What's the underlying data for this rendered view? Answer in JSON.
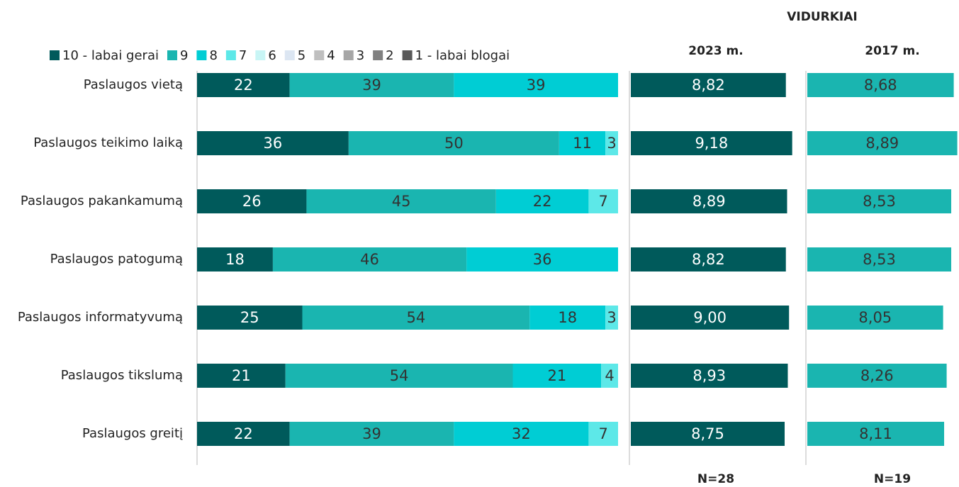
{
  "heading": "VIDURKIAI",
  "chart_data": [
    {
      "type": "stacked-bar",
      "orientation": "horizontal",
      "categories": [
        "Paslaugos vietą",
        "Paslaugos teikimo laiką",
        "Paslaugos pakankamumą",
        "Paslaugos patogumą",
        "Paslaugos informatyvumą",
        "Paslaugos tikslumą",
        "Paslaugos greitį"
      ],
      "xlim": [
        0,
        100
      ],
      "series": [
        {
          "name": "10 - labai gerai",
          "color": "#005a5b",
          "values": [
            22,
            36,
            26,
            18,
            25,
            21,
            22
          ]
        },
        {
          "name": "9",
          "color": "#1ab5b0",
          "values": [
            39,
            50,
            45,
            46,
            54,
            54,
            39
          ]
        },
        {
          "name": "8",
          "color": "#00cdd4",
          "values": [
            39,
            11,
            22,
            36,
            18,
            21,
            32
          ]
        },
        {
          "name": "7",
          "color": "#5de8e8",
          "values": [
            null,
            3,
            7,
            null,
            3,
            4,
            7
          ]
        },
        {
          "name": "6",
          "color": "#c8f5f5",
          "values": [
            null,
            null,
            null,
            null,
            null,
            null,
            null
          ]
        },
        {
          "name": "5",
          "color": "#dce6f2",
          "values": [
            null,
            null,
            null,
            null,
            null,
            null,
            null
          ]
        },
        {
          "name": "4",
          "color": "#bfbfbf",
          "values": [
            null,
            null,
            null,
            null,
            null,
            null,
            null
          ]
        },
        {
          "name": "3",
          "color": "#a6a6a6",
          "values": [
            null,
            null,
            null,
            null,
            null,
            null,
            null
          ]
        },
        {
          "name": "2",
          "color": "#808080",
          "values": [
            null,
            null,
            null,
            null,
            null,
            null,
            null
          ]
        },
        {
          "name": "1 - labai blogai",
          "color": "#595959",
          "values": [
            null,
            null,
            null,
            null,
            null,
            null,
            null
          ]
        }
      ]
    },
    {
      "type": "bar",
      "orientation": "horizontal",
      "title": "2023 m.",
      "note": "N=28",
      "color": "#005a5b",
      "xlim": [
        0,
        10
      ],
      "values": [
        8.82,
        9.18,
        8.89,
        8.82,
        9.0,
        8.93,
        8.75
      ],
      "value_labels": [
        "8,82",
        "9,18",
        "8,89",
        "8,82",
        "9,00",
        "8,93",
        "8,75"
      ]
    },
    {
      "type": "bar",
      "orientation": "horizontal",
      "title": "2017 m.",
      "note": "N=19",
      "color": "#1ab5b0",
      "xlim": [
        0,
        10
      ],
      "values": [
        8.68,
        8.89,
        8.53,
        8.53,
        8.05,
        8.26,
        8.11
      ],
      "value_labels": [
        "8,68",
        "8,89",
        "8,53",
        "8,53",
        "8,05",
        "8,26",
        "8,11"
      ]
    }
  ]
}
